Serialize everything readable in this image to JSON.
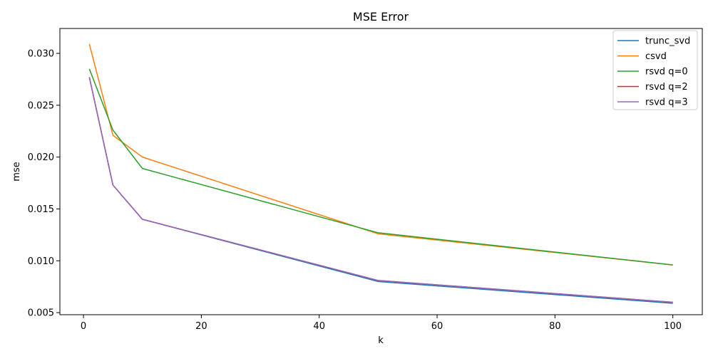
{
  "chart_data": {
    "type": "line",
    "title": "MSE Error",
    "xlabel": "k",
    "ylabel": "mse",
    "xlim": [
      -4,
      105
    ],
    "ylim": [
      0.0048,
      0.0324
    ],
    "xticks": [
      0,
      20,
      40,
      60,
      80,
      100
    ],
    "yticks": [
      0.005,
      0.01,
      0.015,
      0.02,
      0.025,
      0.03
    ],
    "xtick_labels": [
      "0",
      "20",
      "40",
      "60",
      "80",
      "100"
    ],
    "ytick_labels": [
      "0.005",
      "0.010",
      "0.015",
      "0.020",
      "0.025",
      "0.030"
    ],
    "grid": false,
    "legend_position": "top-right",
    "x": [
      1,
      5,
      10,
      50,
      100
    ],
    "series": [
      {
        "name": "trunc_svd",
        "color": "#1f77b4",
        "values": [
          0.0277,
          0.0173,
          0.014,
          0.008,
          0.0059
        ]
      },
      {
        "name": "csvd",
        "color": "#ff7f0e",
        "values": [
          0.0309,
          0.0221,
          0.02,
          0.0126,
          0.0096
        ]
      },
      {
        "name": "rsvd q=0",
        "color": "#2ca02c",
        "values": [
          0.0285,
          0.0226,
          0.0189,
          0.0127,
          0.0096
        ]
      },
      {
        "name": "rsvd q=2",
        "color": "#d62728",
        "values": [
          0.0277,
          0.0173,
          0.014,
          0.0081,
          0.006
        ]
      },
      {
        "name": "rsvd q=3",
        "color": "#9467bd",
        "values": [
          0.0277,
          0.0173,
          0.014,
          0.0081,
          0.006
        ]
      }
    ]
  }
}
